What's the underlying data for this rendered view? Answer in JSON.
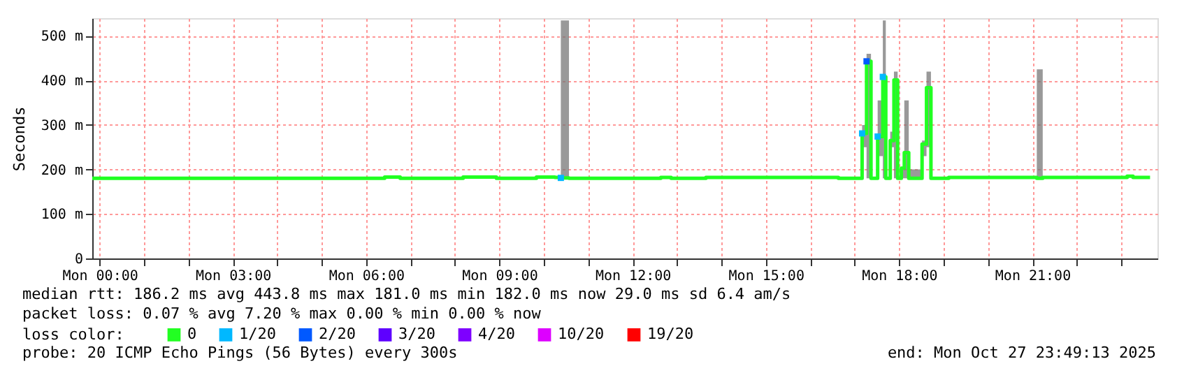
{
  "chart_data": {
    "type": "step",
    "ylabel": "Seconds",
    "x": [
      "2025-10-26T23:50",
      "2025-10-27T06:25",
      "2025-10-27T06:46",
      "2025-10-27T08:11",
      "2025-10-27T08:56",
      "2025-10-27T09:50",
      "2025-10-27T10:15",
      "2025-10-27T10:23",
      "2025-10-27T10:34",
      "2025-10-27T12:38",
      "2025-10-27T12:52",
      "2025-10-27T13:39",
      "2025-10-27T16:38",
      "2025-10-27T17:10",
      "2025-10-27T17:16",
      "2025-10-27T17:22",
      "2025-10-27T17:31",
      "2025-10-27T17:38",
      "2025-10-27T17:42",
      "2025-10-27T17:48",
      "2025-10-27T17:53",
      "2025-10-27T17:58",
      "2025-10-27T18:03",
      "2025-10-27T18:07",
      "2025-10-27T18:13",
      "2025-10-27T18:31",
      "2025-10-27T18:37",
      "2025-10-27T18:43",
      "2025-10-27T19:07",
      "2025-10-27T21:06",
      "2025-10-27T21:14",
      "2025-10-27T23:08",
      "2025-10-27T23:16",
      "2025-10-27T23:39"
    ],
    "series": [
      {
        "name": "0",
        "color": "#22ff22",
        "values": [
          180,
          183,
          180,
          183,
          180,
          183,
          182,
          181,
          180,
          182,
          180,
          182,
          180,
          281,
          443,
          180,
          274,
          408,
          180,
          265,
          401,
          180,
          203,
          238,
          180,
          257,
          384,
          180,
          182,
          180,
          182,
          185,
          182,
          182
        ],
        "lower": [
          180,
          183,
          180,
          183,
          180,
          183,
          182,
          180,
          180,
          182,
          180,
          182,
          180,
          250,
          180,
          180,
          230,
          180,
          180,
          250,
          180,
          180,
          180,
          180,
          180,
          230,
          250,
          180,
          182,
          180,
          182,
          185,
          182,
          182
        ],
        "upper": [
          180,
          183,
          180,
          183,
          180,
          183,
          182,
          535,
          180,
          182,
          180,
          182,
          180,
          300,
          460,
          180,
          355,
          535,
          180,
          285,
          420,
          180,
          200,
          355,
          200,
          265,
          420,
          180,
          182,
          425,
          182,
          185,
          182,
          182
        ]
      },
      {
        "name": "1/20",
        "type": "scatter",
        "marker": "square",
        "color": "#00b8ff",
        "x": [
          "2025-10-27T10:23",
          "2025-10-27T17:10",
          "2025-10-27T17:31",
          "2025-10-27T17:38"
        ],
        "values": [
          181,
          281,
          274,
          408
        ]
      },
      {
        "name": "2/20",
        "type": "scatter",
        "marker": "square",
        "color": "#0059ff",
        "x": [
          "2025-10-27T17:16"
        ],
        "values": [
          443
        ]
      },
      {
        "name": "3/20",
        "type": "scatter",
        "color": "#5e00ff",
        "values": [
          null,
          null,
          null,
          null,
          null,
          null,
          null,
          null,
          null,
          null,
          null,
          null,
          null,
          null,
          null,
          null,
          null,
          null,
          null,
          null,
          null,
          null,
          null,
          null,
          null,
          null,
          null,
          null,
          null,
          null,
          null,
          null,
          null,
          null
        ]
      },
      {
        "name": "4/20",
        "type": "scatter",
        "color": "#7e00ff",
        "values": [
          null,
          null,
          null,
          null,
          null,
          null,
          null,
          null,
          null,
          null,
          null,
          null,
          null,
          null,
          null,
          null,
          null,
          null,
          null,
          null,
          null,
          null,
          null,
          null,
          null,
          null,
          null,
          null,
          null,
          null,
          null,
          null,
          null,
          null
        ]
      },
      {
        "name": "10/20",
        "type": "scatter",
        "color": "#dd00ff",
        "values": [
          null,
          null,
          null,
          null,
          null,
          null,
          null,
          null,
          null,
          null,
          null,
          null,
          null,
          null,
          null,
          null,
          null,
          null,
          null,
          null,
          null,
          null,
          null,
          null,
          null,
          null,
          null,
          null,
          null,
          null,
          null,
          null,
          null,
          null
        ]
      },
      {
        "name": "19/20",
        "type": "scatter",
        "color": "#ff0000",
        "values": [
          null,
          null,
          null,
          null,
          null,
          null,
          null,
          null,
          null,
          null,
          null,
          null,
          null,
          null,
          null,
          null,
          null,
          null,
          null,
          null,
          null,
          null,
          null,
          null,
          null,
          null,
          null,
          null,
          null,
          null,
          null,
          null,
          null,
          null
        ]
      }
    ],
    "legend_title": "loss color:",
    "legend": "bottom",
    "grid": true,
    "xlim": [
      "2025-10-26T23:50",
      "2025-10-27T23:49"
    ],
    "xticks": [
      {
        "value": "2025-10-27T00:00",
        "label": "Mon 00:00"
      },
      {
        "value": "2025-10-27T01:00",
        "label": null
      },
      {
        "value": "2025-10-27T02:00",
        "label": null
      },
      {
        "value": "2025-10-27T03:00",
        "label": "Mon 03:00"
      },
      {
        "value": "2025-10-27T04:00",
        "label": null
      },
      {
        "value": "2025-10-27T05:00",
        "label": null
      },
      {
        "value": "2025-10-27T06:00",
        "label": "Mon 06:00"
      },
      {
        "value": "2025-10-27T07:00",
        "label": null
      },
      {
        "value": "2025-10-27T08:00",
        "label": null
      },
      {
        "value": "2025-10-27T09:00",
        "label": "Mon 09:00"
      },
      {
        "value": "2025-10-27T10:00",
        "label": null
      },
      {
        "value": "2025-10-27T11:00",
        "label": null
      },
      {
        "value": "2025-10-27T12:00",
        "label": "Mon 12:00"
      },
      {
        "value": "2025-10-27T13:00",
        "label": null
      },
      {
        "value": "2025-10-27T14:00",
        "label": null
      },
      {
        "value": "2025-10-27T15:00",
        "label": "Mon 15:00"
      },
      {
        "value": "2025-10-27T16:00",
        "label": null
      },
      {
        "value": "2025-10-27T17:00",
        "label": null
      },
      {
        "value": "2025-10-27T18:00",
        "label": "Mon 18:00"
      },
      {
        "value": "2025-10-27T19:00",
        "label": null
      },
      {
        "value": "2025-10-27T20:00",
        "label": null
      },
      {
        "value": "2025-10-27T21:00",
        "label": "Mon 21:00"
      },
      {
        "value": "2025-10-27T22:00",
        "label": null
      },
      {
        "value": "2025-10-27T23:00",
        "label": null
      }
    ],
    "ylim": [
      0,
      540
    ],
    "yticks": [
      0,
      {
        "value": 100,
        "label": "100 m"
      },
      {
        "value": 200,
        "label": "200 m"
      },
      {
        "value": 300,
        "label": "300 m"
      },
      {
        "value": 400,
        "label": "400 m"
      },
      {
        "value": 500,
        "label": "500 m"
      }
    ],
    "annotations": [
      "median rtt:  186.2 ms avg  443.8 ms max  181.0 ms min  182.0 ms now  29.0 ms sd  6.4   am/s",
      "packet loss: 0.07 % avg  7.20 % max  0.00 % min  0.00 % now",
      "probe:       20 ICMP Echo Pings (56 Bytes) every 300s",
      "end: Mon Oct 27 23:49:13 2025"
    ]
  }
}
